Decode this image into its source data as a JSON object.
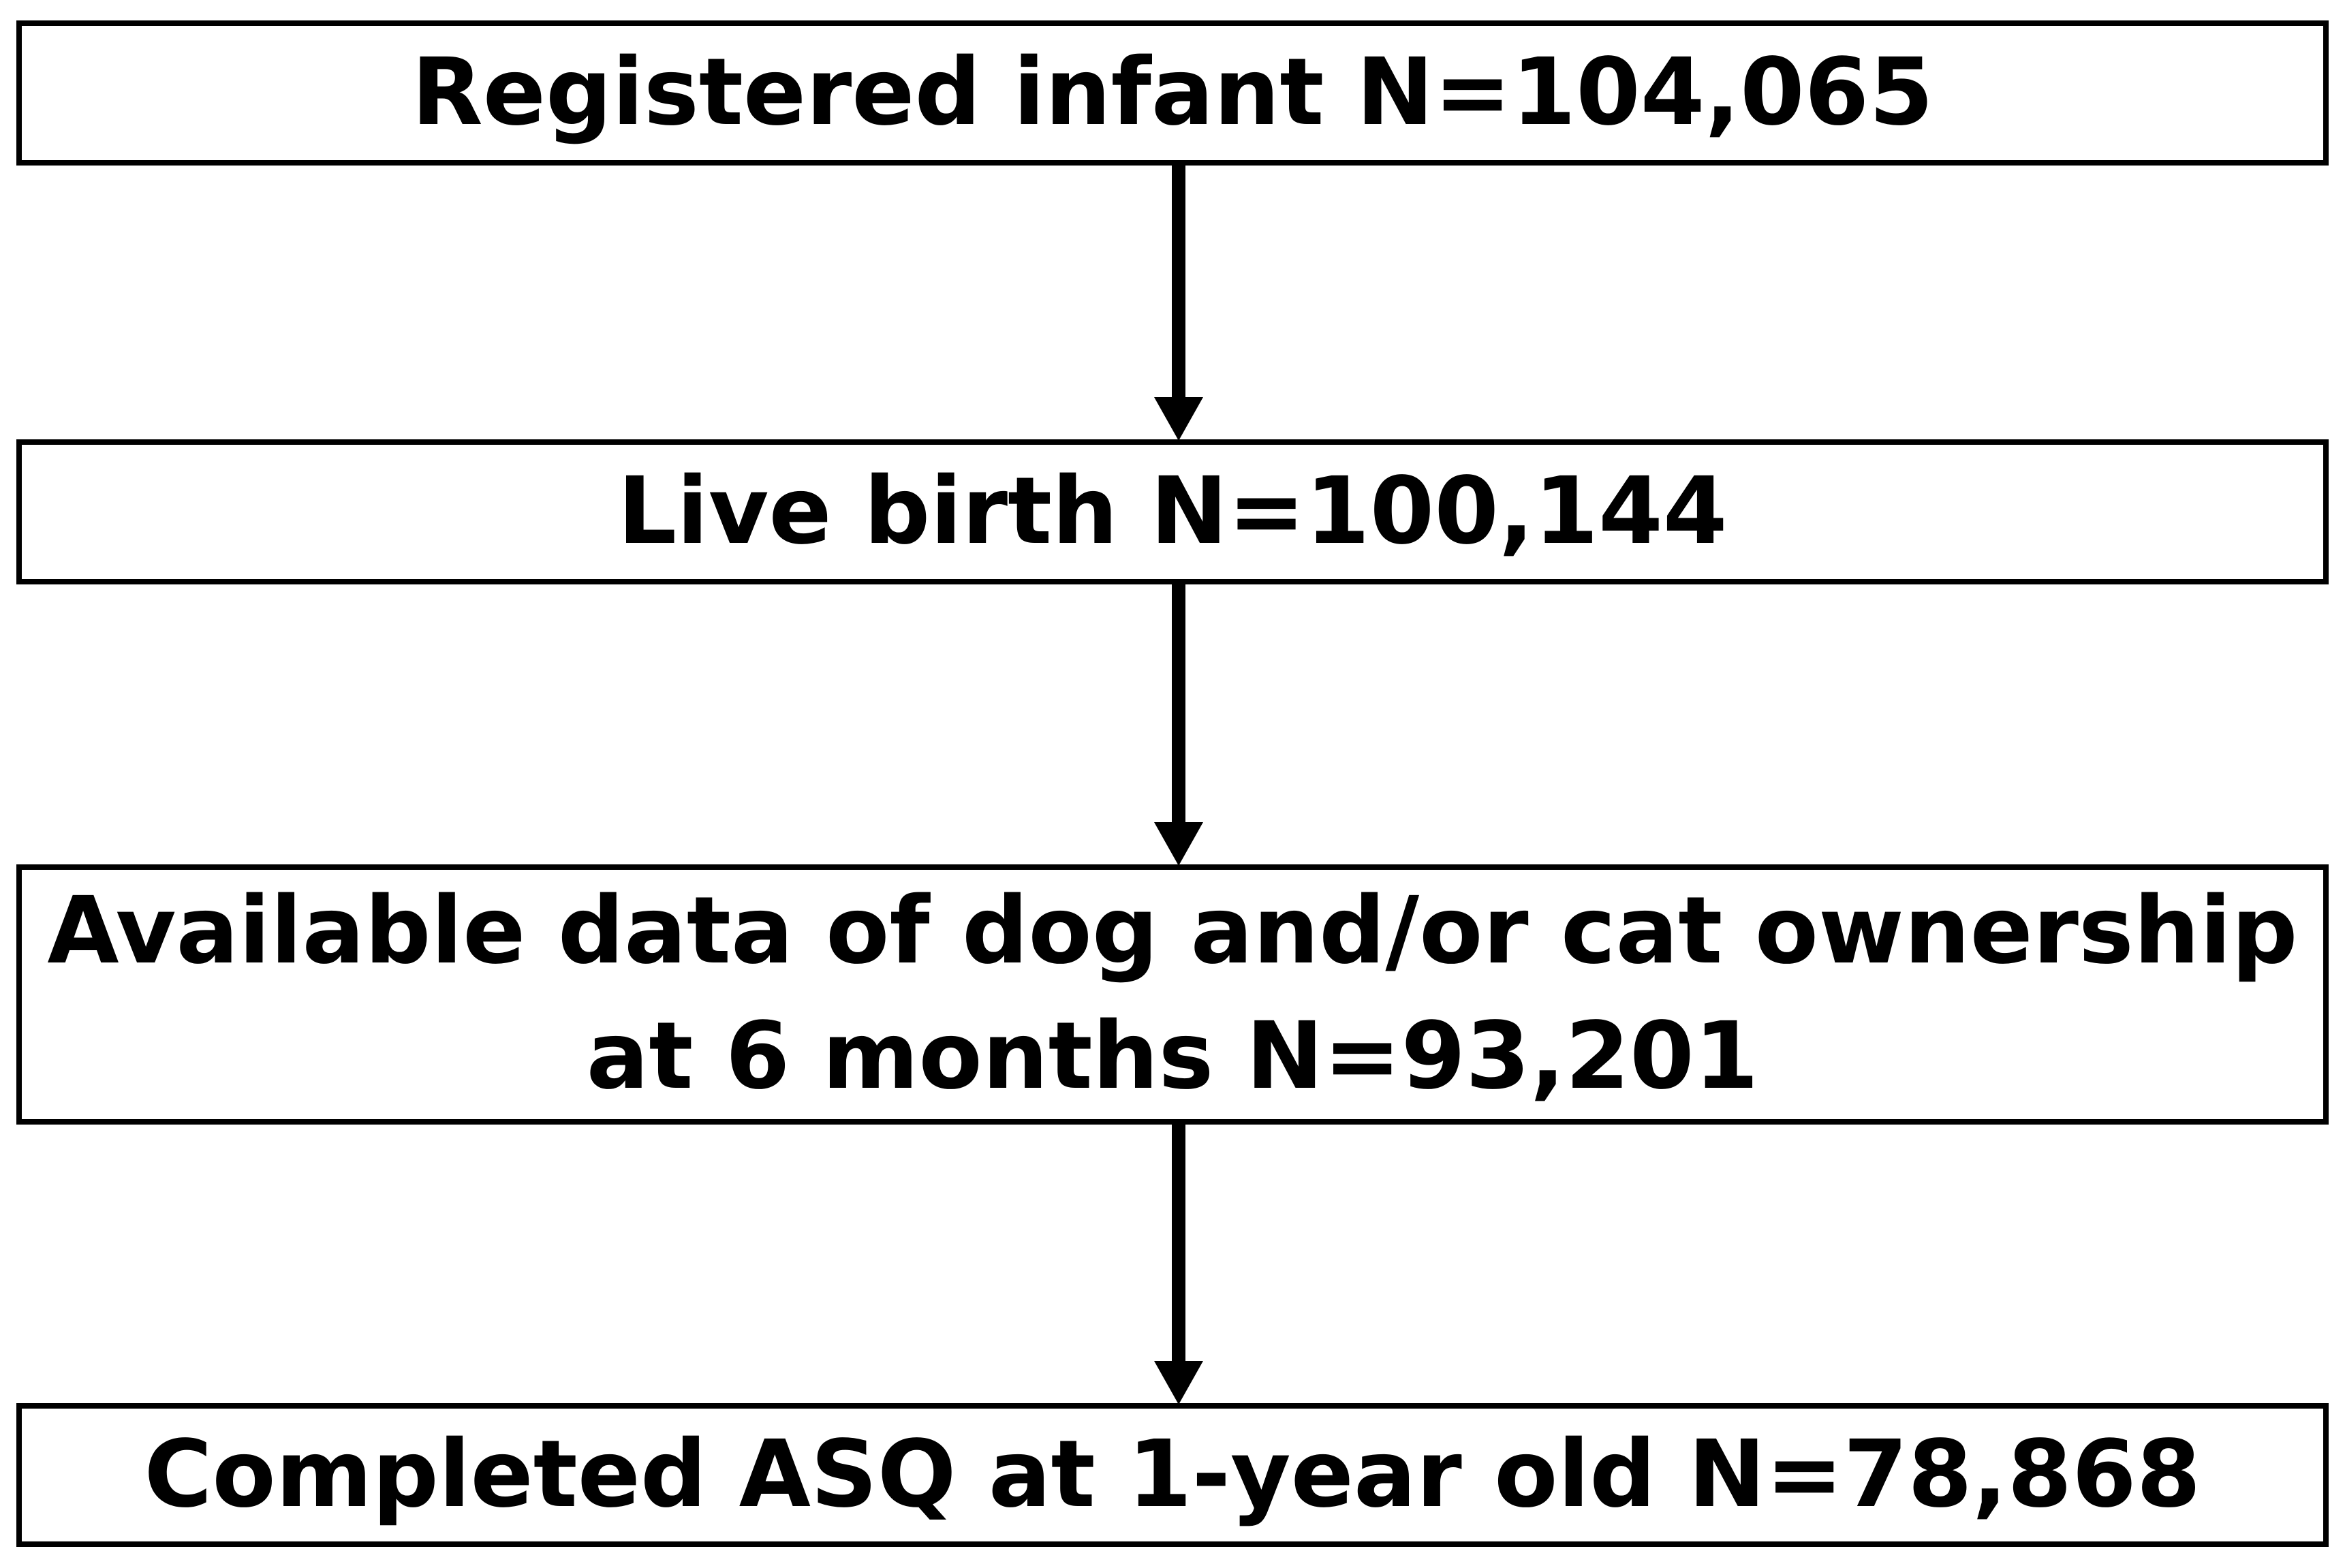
{
  "diagram": {
    "type": "flowchart",
    "direction": "top-down",
    "colors": {
      "background": "#ffffff",
      "box_fill": "#ffffff",
      "box_border": "#000000",
      "text": "#000000",
      "arrow": "#000000"
    },
    "boxes": [
      {
        "id": "registered-infant",
        "label": "Registered infant N=104,065",
        "n": 104065
      },
      {
        "id": "live-birth",
        "label": "Live birth N=100,144",
        "n": 100144
      },
      {
        "id": "ownership-data",
        "label": "Available data of dog and/or cat ownership\nat 6 months N=93,201",
        "n": 93201
      },
      {
        "id": "completed-asq",
        "label": "Completed ASQ at 1-year old N=78,868",
        "n": 78868
      }
    ],
    "connections": [
      {
        "from": "registered-infant",
        "to": "live-birth"
      },
      {
        "from": "live-birth",
        "to": "ownership-data"
      },
      {
        "from": "ownership-data",
        "to": "completed-asq"
      }
    ]
  }
}
